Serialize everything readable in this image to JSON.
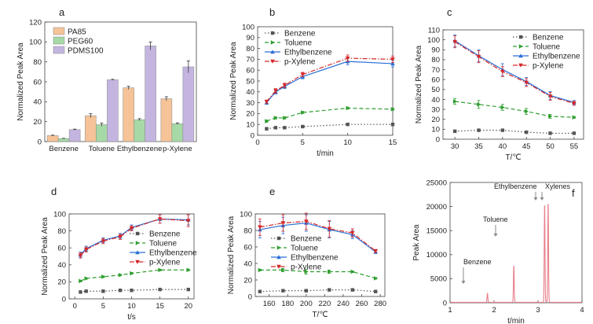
{
  "chart_data": [
    {
      "panel": "a",
      "type": "bar",
      "categories": [
        "Benzene",
        "Toluene",
        "Ethylbenzene",
        "p-Xylene"
      ],
      "series": [
        {
          "name": "PA85",
          "color": "#f5c397",
          "values": [
            6,
            26,
            54,
            43
          ],
          "err": [
            0.5,
            2,
            1.5,
            2
          ]
        },
        {
          "name": "PEG60",
          "color": "#a6d9a6",
          "values": [
            3,
            17,
            22,
            18
          ],
          "err": [
            0.3,
            1.5,
            1,
            0.8
          ]
        },
        {
          "name": "PDMS100",
          "color": "#c4b5e0",
          "values": [
            12,
            62,
            96,
            75
          ],
          "err": [
            0.5,
            0.5,
            4,
            6
          ]
        }
      ],
      "ylabel": "Normalized Peak Area",
      "ylim": [
        0,
        120
      ],
      "yticks": [
        0,
        20,
        40,
        60,
        80,
        100,
        120
      ],
      "legend": "top-left"
    },
    {
      "panel": "b",
      "type": "line",
      "x": [
        1,
        2,
        3,
        5,
        10,
        15
      ],
      "series": [
        {
          "name": "Benzene",
          "color": "#555555",
          "style": "dot",
          "marker": "square",
          "values": [
            6,
            7,
            7,
            8,
            10,
            10
          ],
          "err": [
            0.5,
            0.5,
            0.5,
            0.5,
            0.8,
            0.8
          ]
        },
        {
          "name": "Toluene",
          "color": "#2e9d2e",
          "style": "dash",
          "marker": "triangle-right",
          "values": [
            13,
            16,
            16,
            21,
            25,
            24
          ],
          "err": [
            1,
            1,
            1,
            1,
            1,
            1
          ]
        },
        {
          "name": "Ethylbenzene",
          "color": "#2a6fd6",
          "style": "solid",
          "marker": "triangle-up",
          "values": [
            30,
            40,
            45,
            54,
            68,
            66
          ],
          "err": [
            1.5,
            2,
            2,
            2,
            3,
            3
          ]
        },
        {
          "name": "p-Xylene",
          "color": "#d62728",
          "style": "dashdot",
          "marker": "triangle-down",
          "values": [
            31,
            41,
            46,
            56,
            71,
            70
          ],
          "err": [
            1.5,
            2,
            2,
            2,
            3,
            3
          ]
        }
      ],
      "xlabel": "t/min",
      "ylabel": "Normalized Peak Area",
      "xlim": [
        0,
        15
      ],
      "ylim": [
        0,
        100
      ],
      "xticks": [
        0,
        5,
        10,
        15
      ],
      "yticks": [
        0,
        10,
        20,
        30,
        40,
        50,
        60,
        70,
        80,
        90,
        100
      ],
      "legend": "top-left"
    },
    {
      "panel": "c",
      "type": "line",
      "x": [
        30,
        35,
        40,
        45,
        50,
        55
      ],
      "series": [
        {
          "name": "Benzene",
          "color": "#555555",
          "style": "dot",
          "marker": "square",
          "values": [
            8,
            9,
            9,
            7,
            6,
            6
          ],
          "err": [
            0.5,
            0.5,
            0.5,
            0.5,
            0.5,
            0.5
          ]
        },
        {
          "name": "Toluene",
          "color": "#2e9d2e",
          "style": "dash",
          "marker": "triangle-right",
          "values": [
            38,
            35,
            32,
            28,
            23,
            22
          ],
          "err": [
            3,
            4,
            3,
            3,
            2,
            1
          ]
        },
        {
          "name": "Ethylbenzene",
          "color": "#2a6fd6",
          "style": "solid",
          "marker": "triangle-up",
          "values": [
            99,
            84,
            70,
            58,
            44,
            37
          ],
          "err": [
            6,
            6,
            6,
            4,
            4,
            2
          ]
        },
        {
          "name": "p-Xylene",
          "color": "#d62728",
          "style": "dashdot",
          "marker": "triangle-down",
          "values": [
            98,
            83,
            68,
            57,
            43,
            36
          ],
          "err": [
            6,
            6,
            5,
            4,
            4,
            2
          ]
        }
      ],
      "xlabel": "T/℃",
      "ylabel": "Normalized Peak Area",
      "xlim": [
        27.5,
        57
      ],
      "ylim": [
        0,
        110
      ],
      "xticks": [
        30,
        35,
        40,
        45,
        50,
        55
      ],
      "yticks": [
        0,
        10,
        20,
        30,
        40,
        50,
        60,
        70,
        80,
        90,
        100,
        110
      ],
      "legend": "top-right"
    },
    {
      "panel": "d",
      "type": "line",
      "x": [
        1,
        2,
        5,
        8,
        10,
        15,
        20
      ],
      "series": [
        {
          "name": "Benzene",
          "color": "#555555",
          "style": "dot",
          "marker": "square",
          "values": [
            8,
            9,
            9,
            10,
            10,
            11,
            11
          ],
          "err": [
            0.3,
            0.3,
            0.3,
            0.3,
            0.3,
            0.3,
            0.3
          ]
        },
        {
          "name": "Toluene",
          "color": "#2e9d2e",
          "style": "dash",
          "marker": "triangle-right",
          "values": [
            21,
            24,
            26,
            28,
            30,
            34,
            34
          ],
          "err": [
            1,
            1,
            1,
            1,
            1,
            1,
            1
          ]
        },
        {
          "name": "Ethylbenzene",
          "color": "#2a6fd6",
          "style": "solid",
          "marker": "triangle-up",
          "values": [
            52,
            59,
            69,
            74,
            84,
            94,
            93
          ],
          "err": [
            3,
            3,
            3,
            3,
            3,
            5,
            6
          ]
        },
        {
          "name": "p-Xylene",
          "color": "#d62728",
          "style": "dashdot",
          "marker": "triangle-down",
          "values": [
            51,
            58,
            68,
            73,
            83,
            94,
            92
          ],
          "err": [
            3,
            3,
            3,
            3,
            3,
            5,
            7
          ]
        }
      ],
      "xlabel": "t/s",
      "ylabel": "Normalized Peak Area",
      "xlim": [
        -1,
        21
      ],
      "ylim": [
        0,
        100
      ],
      "xticks": [
        0,
        5,
        10,
        15,
        20
      ],
      "yticks": [
        0,
        20,
        40,
        60,
        80,
        100
      ],
      "legend": "right"
    },
    {
      "panel": "e",
      "type": "line",
      "x": [
        150,
        175,
        200,
        225,
        250,
        275
      ],
      "series": [
        {
          "name": "Benzene",
          "color": "#555555",
          "style": "dot",
          "marker": "square",
          "values": [
            6,
            7,
            7,
            8,
            8,
            6
          ],
          "err": [
            0.3,
            0.3,
            0.3,
            0.3,
            0.3,
            0.3
          ]
        },
        {
          "name": "Toluene",
          "color": "#2e9d2e",
          "style": "dash",
          "marker": "triangle-right",
          "values": [
            32,
            32,
            30,
            30,
            30,
            22
          ],
          "err": [
            1,
            2,
            3,
            2,
            1,
            1
          ]
        },
        {
          "name": "Ethylbenzene",
          "color": "#2a6fd6",
          "style": "solid",
          "marker": "triangle-up",
          "values": [
            81,
            86,
            89,
            81,
            75,
            54
          ],
          "err": [
            10,
            10,
            10,
            10,
            5,
            2
          ]
        },
        {
          "name": "p-Xylene",
          "color": "#d62728",
          "style": "dashdot",
          "marker": "triangle-down",
          "values": [
            84,
            89,
            91,
            82,
            77,
            55
          ],
          "err": [
            10,
            10,
            10,
            10,
            5,
            2
          ]
        }
      ],
      "xlabel": "T/℃",
      "ylabel": "Normalized Peak Area",
      "xlim": [
        145,
        285
      ],
      "ylim": [
        0,
        100
      ],
      "xticks": [
        160,
        180,
        200,
        220,
        240,
        260,
        280
      ],
      "yticks": [
        0,
        20,
        40,
        60,
        80,
        100
      ],
      "legend": "center-left"
    },
    {
      "panel": "f",
      "type": "line",
      "color": "#e87f8a",
      "peaks": [
        {
          "name": "Benzene",
          "x": 1.85,
          "y": 2000
        },
        {
          "name": "Toluene",
          "x": 2.45,
          "y": 7800
        },
        {
          "name": "Ethylbenzene",
          "x": 3.15,
          "y": 20700
        },
        {
          "name": "Xylenes",
          "x": 3.23,
          "y": 21000
        }
      ],
      "baseline": 100,
      "xlabel": "t/min",
      "ylabel": "Peak Area",
      "xlim": [
        1,
        4
      ],
      "ylim": [
        0,
        25000
      ],
      "xticks": [
        1,
        2,
        3,
        4
      ],
      "yticks": [
        0,
        5000,
        10000,
        15000,
        20000,
        25000
      ]
    }
  ]
}
